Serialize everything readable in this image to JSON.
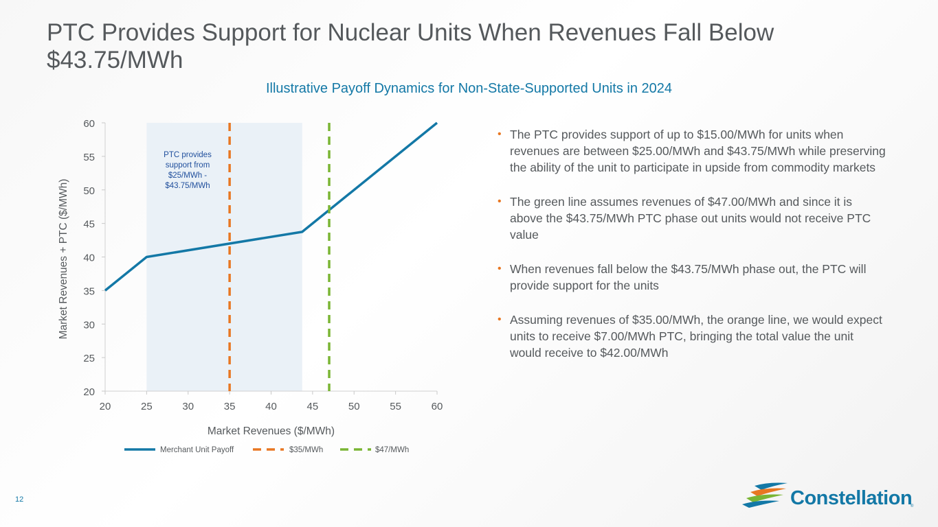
{
  "header": {
    "title": "PTC Provides Support for Nuclear Units When Revenues Fall Below $43.75/MWh",
    "subtitle": "Illustrative Payoff Dynamics for Non-State-Supported Units in 2024"
  },
  "chart_data": {
    "type": "line",
    "title": "Illustrative Payoff Dynamics for Non-State-Supported Units in 2024",
    "xlabel": "Market Revenues ($/MWh)",
    "ylabel": "Market Revenues + PTC  ($/MWh)",
    "xlim": [
      20,
      60
    ],
    "ylim": [
      20,
      60
    ],
    "xticks": [
      20,
      25,
      30,
      35,
      40,
      45,
      50,
      55,
      60
    ],
    "yticks": [
      20,
      25,
      30,
      35,
      40,
      45,
      50,
      55,
      60
    ],
    "grid": false,
    "shaded_region": {
      "x_from": 25,
      "x_to": 43.75,
      "label": "PTC provides support from $25/MWh - $43.75/MWh"
    },
    "series": [
      {
        "name": "Merchant Unit Payoff",
        "color": "#1378a6",
        "style": "solid",
        "x": [
          20,
          25,
          43.75,
          44,
          60
        ],
        "y": [
          35,
          40,
          43.75,
          44,
          60
        ]
      },
      {
        "name": "$35/MWh",
        "color": "#e87722",
        "style": "dashed",
        "x_constant": 35
      },
      {
        "name": "$47/MWh",
        "color": "#7ab534",
        "style": "dashed",
        "x_constant": 47
      }
    ],
    "legend_position": "bottom"
  },
  "bullets": [
    "The PTC provides support of up to $15.00/MWh for units when revenues are between $25.00/MWh and $43.75/MWh while preserving the ability of the unit to participate in upside from commodity markets",
    "The green line assumes revenues of $47.00/MWh and since it is above the $43.75/MWh PTC phase out units would not receive PTC value",
    "When revenues fall below the $43.75/MWh phase out, the PTC will provide support for the units",
    "Assuming revenues of $35.00/MWh, the orange line, we would expect units to receive $7.00/MWh PTC, bringing the total value the unit would receive to $42.00/MWh"
  ],
  "footer": {
    "page_number": "12",
    "logo_text": "Constellation",
    "logo_mark": "®"
  },
  "colors": {
    "accent": "#1378a6",
    "orange": "#e87722",
    "green": "#7ab534",
    "text": "#55595c"
  }
}
